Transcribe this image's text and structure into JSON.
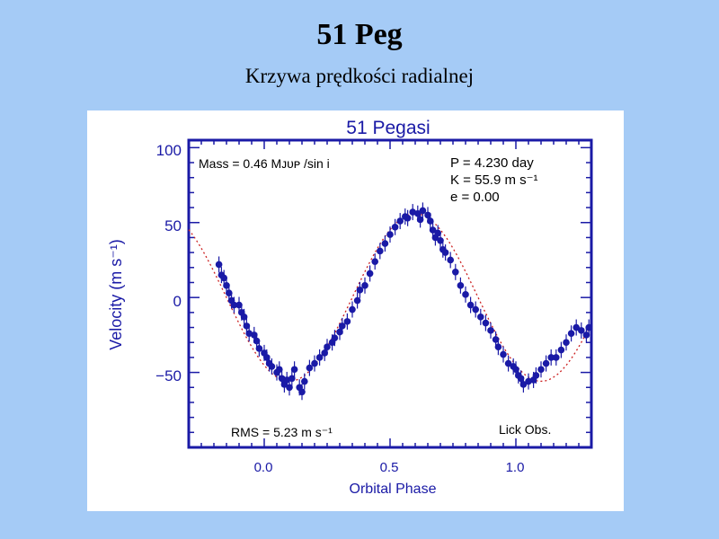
{
  "slide": {
    "title": "51 Peg",
    "subtitle": "Krzywa prędkości radialnej"
  },
  "colors": {
    "background": "#a5cbf6",
    "axes": "#1a1aa6",
    "points": "#1a1aa6",
    "fit": "#cc2020",
    "text": "#000000"
  },
  "chart_data": {
    "type": "scatter",
    "title": "51 Pegasi",
    "xlabel": "Orbital Phase",
    "ylabel": "Velocity (m s⁻¹)",
    "xlim": [
      -0.3,
      1.3
    ],
    "ylim": [
      -100,
      105
    ],
    "xticks": [
      {
        "value": 0.0,
        "label": "0.0"
      },
      {
        "value": 0.5,
        "label": "0.5"
      },
      {
        "value": 1.0,
        "label": "1.0"
      }
    ],
    "yticks": [
      {
        "value": 100,
        "label": "100"
      },
      {
        "value": 50,
        "label": "50"
      },
      {
        "value": 0,
        "label": "0"
      },
      {
        "value": -50,
        "label": "−50"
      }
    ],
    "annotations": {
      "mass": "Mass = 0.46 Mᴊᴜᴘ /sin i",
      "period": "P = 4.230 day",
      "amplitude": "K = 55.9 m s⁻¹",
      "eccentricity": "e = 0.00",
      "rms": "RMS = 5.23 m s⁻¹",
      "observatory": "Lick Obs."
    },
    "fit": {
      "K": 55.9,
      "phase_of_max": 0.6,
      "style": "dotted"
    },
    "grid": false,
    "series": [
      {
        "x": [
          -0.18,
          -0.17,
          -0.16,
          -0.15,
          -0.14,
          -0.13,
          -0.12,
          -0.1,
          -0.09,
          -0.08,
          -0.07,
          -0.06,
          -0.04,
          -0.03,
          -0.02,
          0.0,
          0.01,
          0.02,
          0.03,
          0.05,
          0.06,
          0.07,
          0.08,
          0.09,
          0.1,
          0.11,
          0.12,
          0.14,
          0.15,
          0.16,
          0.18,
          0.2,
          0.22,
          0.24,
          0.25,
          0.27,
          0.28,
          0.3,
          0.31,
          0.33,
          0.35,
          0.37,
          0.38,
          0.4,
          0.42,
          0.44,
          0.46,
          0.48,
          0.5,
          0.52,
          0.54,
          0.56,
          0.57,
          0.59,
          0.61,
          0.62,
          0.63,
          0.65,
          0.66,
          0.67,
          0.68,
          0.69,
          0.7,
          0.71,
          0.72,
          0.74,
          0.76,
          0.78,
          0.8,
          0.82,
          0.84,
          0.86,
          0.88,
          0.9,
          0.92,
          0.93,
          0.95,
          0.97,
          0.99,
          1.0,
          1.01,
          1.02,
          1.03,
          1.05,
          1.07,
          1.08,
          1.1,
          1.12,
          1.14,
          1.16,
          1.18,
          1.2,
          1.22,
          1.24,
          1.26,
          1.28,
          1.29
        ],
        "y": [
          22,
          15,
          13,
          8,
          3,
          -2,
          -5,
          -5,
          -10,
          -13,
          -19,
          -24,
          -25,
          -29,
          -34,
          -37,
          -40,
          -44,
          -46,
          -50,
          -48,
          -54,
          -58,
          -55,
          -60,
          -54,
          -48,
          -60,
          -63,
          -56,
          -47,
          -44,
          -40,
          -37,
          -33,
          -30,
          -27,
          -23,
          -19,
          -16,
          -8,
          -2,
          5,
          8,
          16,
          24,
          31,
          36,
          42,
          47,
          51,
          54,
          53,
          57,
          56,
          52,
          58,
          55,
          51,
          45,
          40,
          43,
          38,
          32,
          30,
          25,
          17,
          8,
          2,
          -5,
          -8,
          -13,
          -17,
          -22,
          -28,
          -33,
          -38,
          -44,
          -46,
          -48,
          -52,
          -54,
          -58,
          -56,
          -55,
          -52,
          -48,
          -44,
          -40,
          -40,
          -35,
          -30,
          -24,
          -20,
          -22,
          -25,
          -20
        ]
      }
    ]
  }
}
